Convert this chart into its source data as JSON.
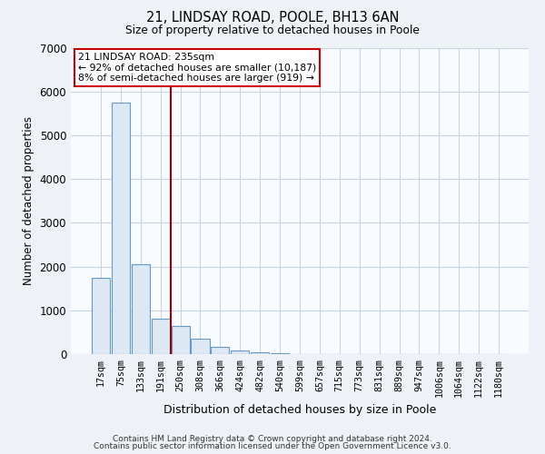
{
  "title1": "21, LINDSAY ROAD, POOLE, BH13 6AN",
  "title2": "Size of property relative to detached houses in Poole",
  "xlabel": "Distribution of detached houses by size in Poole",
  "ylabel": "Number of detached properties",
  "bin_labels": [
    "17sqm",
    "75sqm",
    "133sqm",
    "191sqm",
    "250sqm",
    "308sqm",
    "366sqm",
    "424sqm",
    "482sqm",
    "540sqm",
    "599sqm",
    "657sqm",
    "715sqm",
    "773sqm",
    "831sqm",
    "889sqm",
    "947sqm",
    "1006sqm",
    "1064sqm",
    "1122sqm",
    "1180sqm"
  ],
  "bar_values": [
    1750,
    5750,
    2050,
    800,
    650,
    350,
    170,
    80,
    50,
    20,
    5,
    3,
    2,
    1,
    0,
    0,
    0,
    0,
    0,
    0,
    0
  ],
  "bar_color": "#dce8f3",
  "bar_edge_color": "#6699cc",
  "vline_x": 3.5,
  "vline_color": "#990000",
  "annotation_text": "21 LINDSAY ROAD: 235sqm\n← 92% of detached houses are smaller (10,187)\n8% of semi-detached houses are larger (919) →",
  "annotation_box_color": "#cc0000",
  "ylim": [
    0,
    7000
  ],
  "yticks": [
    0,
    1000,
    2000,
    3000,
    4000,
    5000,
    6000,
    7000
  ],
  "footer1": "Contains HM Land Registry data © Crown copyright and database right 2024.",
  "footer2": "Contains public sector information licensed under the Open Government Licence v3.0.",
  "bg_color": "#eef2f7",
  "plot_bg_color": "#f8fbff",
  "grid_color": "#c5d5e5"
}
